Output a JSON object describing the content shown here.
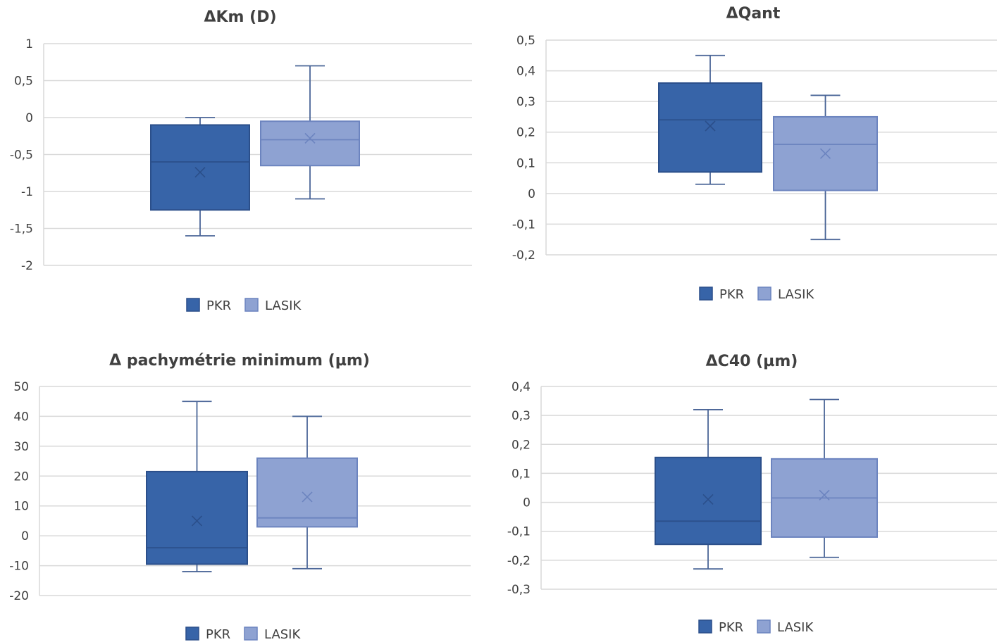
{
  "chart_data": [
    {
      "type": "boxplot",
      "title": "ΔKm (D)",
      "ylim": [
        -2,
        1
      ],
      "ystep": 0.5,
      "yticks": [
        "1",
        "0,5",
        "0",
        "-0,5",
        "-1",
        "-1,5",
        "-2"
      ],
      "grid": true,
      "legend_position": "bottom",
      "series": [
        {
          "name": "PKR",
          "color": "#3764a8",
          "min": -1.6,
          "q1": -1.25,
          "median": -0.6,
          "q3": -0.1,
          "max": 0.0,
          "mean": -0.74
        },
        {
          "name": "LASIK",
          "color": "#8ea2d2",
          "min": -1.1,
          "q1": -0.65,
          "median": -0.3,
          "q3": -0.05,
          "max": 0.7,
          "mean": -0.28
        }
      ]
    },
    {
      "type": "boxplot",
      "title": "ΔQant",
      "ylim": [
        -0.2,
        0.5
      ],
      "ystep": 0.1,
      "yticks": [
        "0,5",
        "0,4",
        "0,3",
        "0,2",
        "0,1",
        "0",
        "-0,1",
        "-0,2"
      ],
      "grid": true,
      "legend_position": "bottom",
      "series": [
        {
          "name": "PKR",
          "color": "#3764a8",
          "min": 0.03,
          "q1": 0.07,
          "median": 0.24,
          "q3": 0.36,
          "max": 0.45,
          "mean": 0.22
        },
        {
          "name": "LASIK",
          "color": "#8ea2d2",
          "min": -0.15,
          "q1": 0.01,
          "median": 0.16,
          "q3": 0.25,
          "max": 0.32,
          "mean": 0.13
        }
      ]
    },
    {
      "type": "boxplot",
      "title": "Δ pachymétrie minimum (µm)",
      "ylim": [
        -20,
        50
      ],
      "ystep": 10,
      "yticks": [
        "50",
        "40",
        "30",
        "20",
        "10",
        "0",
        "-10",
        "-20"
      ],
      "grid": true,
      "legend_position": "bottom",
      "series": [
        {
          "name": "PKR",
          "color": "#3764a8",
          "min": -12,
          "q1": -9.5,
          "median": -4,
          "q3": 21.5,
          "max": 45,
          "mean": 5
        },
        {
          "name": "LASIK",
          "color": "#8ea2d2",
          "min": -11,
          "q1": 3,
          "median": 6,
          "q3": 26,
          "max": 40,
          "mean": 13
        }
      ]
    },
    {
      "type": "boxplot",
      "title": "ΔC40 (µm)",
      "ylim": [
        -0.3,
        0.4
      ],
      "ystep": 0.1,
      "yticks": [
        "0,4",
        "0,3",
        "0,2",
        "0,1",
        "0",
        "-0,1",
        "-0,2",
        "-0,3"
      ],
      "grid": true,
      "legend_position": "bottom",
      "series": [
        {
          "name": "PKR",
          "color": "#3764a8",
          "min": -0.23,
          "q1": -0.145,
          "median": -0.065,
          "q3": 0.155,
          "max": 0.32,
          "mean": 0.01
        },
        {
          "name": "LASIK",
          "color": "#8ea2d2",
          "min": -0.19,
          "q1": -0.12,
          "median": 0.015,
          "q3": 0.15,
          "max": 0.355,
          "mean": 0.025
        }
      ]
    }
  ],
  "colors": {
    "pkr_fill": "#3764a8",
    "pkr_stroke": "#2b4f8a",
    "lasik_fill": "#8ea2d2",
    "lasik_stroke": "#6c84bf",
    "whisker": "#4a6597",
    "grid": "#d9d9d9",
    "text": "#404040"
  }
}
